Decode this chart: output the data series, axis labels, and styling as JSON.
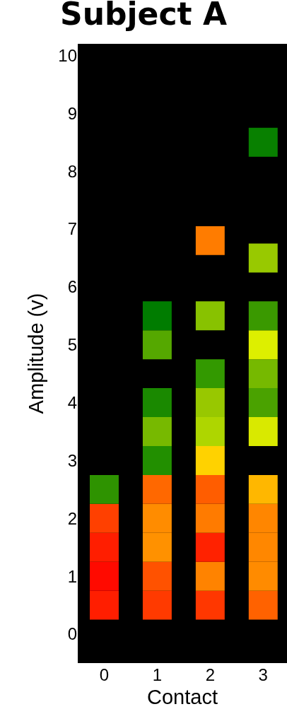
{
  "chart_data": {
    "type": "scatter",
    "title": "Subject A",
    "xlabel": "Contact",
    "ylabel": "Amplitude (v)",
    "categories": [
      "0",
      "1",
      "2",
      "3"
    ],
    "series": [
      {
        "x": [
          "0",
          "0",
          "0",
          "0",
          "0",
          "1",
          "1",
          "1",
          "1",
          "1",
          "1",
          "1",
          "1",
          "1",
          "1",
          "2",
          "2",
          "2",
          "2",
          "2",
          "2",
          "2",
          "2",
          "2",
          "2",
          "2",
          "3",
          "3",
          "3",
          "3",
          "3",
          "3",
          "3",
          "3",
          "3",
          "3",
          "3",
          "3"
        ],
        "values": [
          0.5,
          1,
          1.5,
          2,
          2.5,
          0.5,
          1,
          1.5,
          2,
          2.5,
          3,
          3.5,
          4,
          5,
          5.5,
          0.5,
          1,
          1.5,
          2,
          2.5,
          3,
          3.5,
          4,
          4.5,
          5.5,
          6.8,
          0.5,
          1,
          1.5,
          2,
          2.5,
          3.5,
          4,
          4.5,
          5,
          5.5,
          6.5,
          8.5
        ],
        "colors": [
          "#ff1e00",
          "#ff0a00",
          "#ff1e00",
          "#ff4000",
          "#2e9300",
          "#ff3a00",
          "#ff5200",
          "#ff9100",
          "#ff8c00",
          "#ff6800",
          "#228f00",
          "#77b900",
          "#1a8900",
          "#55a800",
          "#007c00",
          "#ff3700",
          "#ff8300",
          "#ff2200",
          "#ff7b00",
          "#ff5d00",
          "#ffd200",
          "#aed600",
          "#98c800",
          "#339900",
          "#88c200",
          "#ff7c00",
          "#ff6200",
          "#ff8b00",
          "#ff8700",
          "#ff8600",
          "#ffb700",
          "#d9e900",
          "#4aa200",
          "#76b900",
          "#ddef00",
          "#3a9900",
          "#98c900",
          "#088000"
        ]
      }
    ],
    "marker": "square",
    "ylim": [
      -0.5,
      10.2
    ],
    "yticks": [
      0,
      1,
      2,
      3,
      4,
      5,
      6,
      7,
      8,
      9,
      10
    ],
    "grid": false,
    "legend": false
  }
}
